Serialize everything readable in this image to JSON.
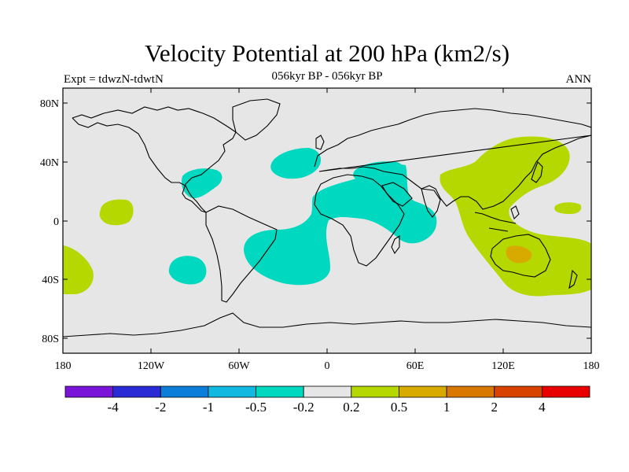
{
  "title": "Velocity Potential at 200 hPa (km2/s)",
  "subtitle": "056kyr BP - 056kyr BP",
  "left_label": "Expt = tdwzN-tdwtN",
  "right_label": "ANN",
  "y_ticks": [
    "80N",
    "40N",
    "0",
    "40S",
    "80S"
  ],
  "x_ticks": [
    "180",
    "120W",
    "60W",
    "0",
    "60E",
    "120E",
    "180"
  ],
  "colorbar": {
    "colors": [
      "#7a14d8",
      "#2b2bd6",
      "#0a7ed8",
      "#12b8e0",
      "#00d8bf",
      "#e6e6e6",
      "#b4d800",
      "#d8aa00",
      "#d87800",
      "#d84400",
      "#e80000"
    ],
    "labels": [
      "-4",
      "-2",
      "-1",
      "-0.5",
      "-0.2",
      "0.2",
      "0.5",
      "1",
      "2",
      "4"
    ]
  },
  "map_colors": {
    "background": "#e6e6e6",
    "negative": "#00d8bf",
    "positive": "#b4d800",
    "strong_positive": "#d8aa00"
  }
}
